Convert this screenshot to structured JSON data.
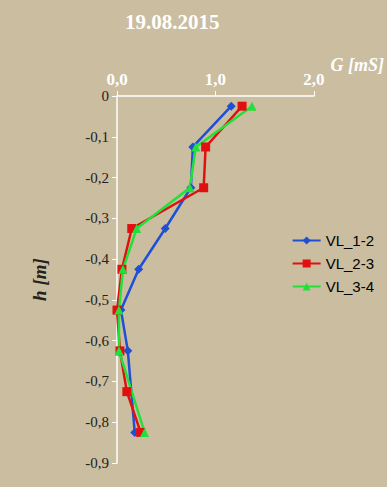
{
  "chart_data": {
    "type": "line",
    "title": "19.08.2015",
    "x_label": "G [mS]",
    "y_label": "h [m]",
    "xlim": [
      0,
      2
    ],
    "xticks": [
      {
        "value": 0,
        "label": "0,0"
      },
      {
        "value": 1,
        "label": "1,0"
      },
      {
        "value": 2,
        "label": "2,0"
      }
    ],
    "ylim": [
      -0.9,
      0
    ],
    "yticks": [
      0,
      {
        "value": -0.1,
        "label": "-0,1"
      },
      {
        "value": -0.2,
        "label": "-0,2"
      },
      {
        "value": -0.3,
        "label": "-0,3"
      },
      {
        "value": -0.4,
        "label": "-0,4"
      },
      {
        "value": -0.5,
        "label": "-0,5"
      },
      {
        "value": -0.6,
        "label": "-0,6"
      },
      {
        "value": -0.7,
        "label": "-0,7"
      },
      {
        "value": -0.8,
        "label": "-0,8"
      },
      {
        "value": -0.9,
        "label": "-0,9"
      }
    ],
    "grid": false,
    "legend": "right",
    "series": [
      {
        "name": "VL_1-2",
        "color": "#1f4fd6",
        "marker": "diamond",
        "x": [
          1.16,
          0.77,
          0.75,
          0.49,
          0.22,
          0.04,
          0.11,
          0.18
        ],
        "values": [
          -0.025,
          -0.125,
          -0.225,
          -0.325,
          -0.425,
          -0.525,
          -0.625,
          -0.825
        ]
      },
      {
        "name": "VL_2-3",
        "color": "#e01010",
        "marker": "square",
        "x": [
          1.27,
          0.9,
          0.88,
          0.15,
          0.05,
          0.0,
          0.03,
          0.1,
          0.24
        ],
        "values": [
          -0.025,
          -0.125,
          -0.225,
          -0.325,
          -0.425,
          -0.525,
          -0.625,
          -0.725,
          -0.825
        ]
      },
      {
        "name": "VL_3-4",
        "color": "#22e03a",
        "marker": "triangle",
        "x": [
          1.37,
          0.8,
          0.74,
          0.2,
          0.06,
          0.02,
          0.02,
          0.28
        ],
        "values": [
          -0.025,
          -0.125,
          -0.225,
          -0.325,
          -0.425,
          -0.525,
          -0.625,
          -0.825
        ]
      }
    ]
  }
}
